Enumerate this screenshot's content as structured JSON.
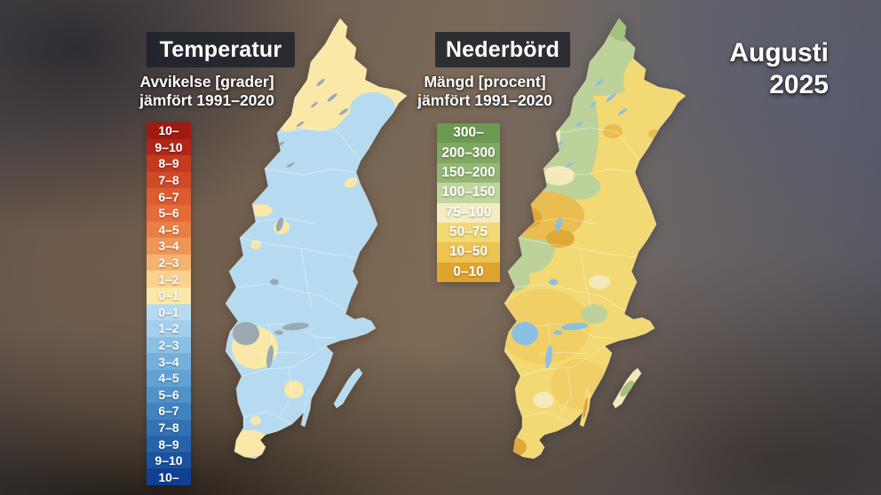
{
  "header": {
    "month": "Augusti",
    "year": "2025"
  },
  "temperature_panel": {
    "title": "Temperatur",
    "subtitle_line1": "Avvikelse [grader]",
    "subtitle_line2": "jämfört 1991–2020",
    "legend": [
      {
        "label": "10–",
        "color": "#9f1b12"
      },
      {
        "label": "9–10",
        "color": "#b22619"
      },
      {
        "label": "8–9",
        "color": "#c33a21"
      },
      {
        "label": "7–8",
        "color": "#cf4a28"
      },
      {
        "label": "6–7",
        "color": "#da5c30"
      },
      {
        "label": "5–6",
        "color": "#e36c39"
      },
      {
        "label": "4–5",
        "color": "#ea7f45"
      },
      {
        "label": "3–4",
        "color": "#ef9557"
      },
      {
        "label": "2–3",
        "color": "#f4b471"
      },
      {
        "label": "1–2",
        "color": "#f8d28e"
      },
      {
        "label": "0–1",
        "color": "#fae8a8"
      },
      {
        "label": "0–1",
        "color": "#b6dbf0"
      },
      {
        "label": "1–2",
        "color": "#a3cfec"
      },
      {
        "label": "2–3",
        "color": "#8bc0e5"
      },
      {
        "label": "3–4",
        "color": "#75b0dc"
      },
      {
        "label": "4–5",
        "color": "#61a1d3"
      },
      {
        "label": "5–6",
        "color": "#5092c9"
      },
      {
        "label": "6–7",
        "color": "#4083bf"
      },
      {
        "label": "7–8",
        "color": "#3273b4"
      },
      {
        "label": "8–9",
        "color": "#2663a9"
      },
      {
        "label": "9–10",
        "color": "#1a52a0"
      },
      {
        "label": "10–",
        "color": "#113f93"
      }
    ]
  },
  "precipitation_panel": {
    "title": "Nederbörd",
    "subtitle_line1": "Mängd [procent]",
    "subtitle_line2": "jämfört 1991–2020",
    "legend": [
      {
        "label": "300–",
        "color": "#6d9a52"
      },
      {
        "label": "200–300",
        "color": "#7fa862"
      },
      {
        "label": "150–200",
        "color": "#94b873"
      },
      {
        "label": "100–150",
        "color": "#c2d59e"
      },
      {
        "label": "75–100",
        "color": "#f4ecc2"
      },
      {
        "label": "50–75",
        "color": "#f3d973"
      },
      {
        "label": "10–50",
        "color": "#edc354"
      },
      {
        "label": "0–10",
        "color": "#dfa42e"
      }
    ]
  },
  "palette": {
    "temp-base": "#b6dbf0",
    "temp-warm": "#fae8a8",
    "temp-lake": "#9aa9b2",
    "precip-base": "#f3d973",
    "precip-green": "#bdd29a",
    "precip-green-mid": "#a3c07c",
    "precip-green-dark": "#8fb266",
    "precip-cream": "#f3e9bb",
    "precip-gold": "#e9bd4f",
    "precip-gold-dark": "#dfa83a",
    "precip-lake": "#8cc0e2",
    "title-box-bg": "rgba(28,33,42,0.82)"
  }
}
